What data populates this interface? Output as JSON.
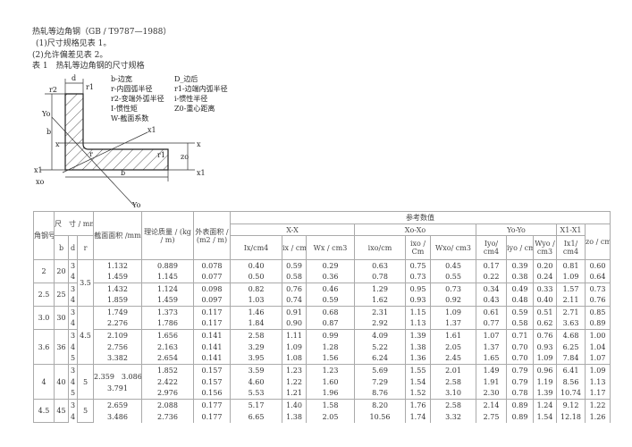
{
  "doc": {
    "heading": "热轧等边角钢（GB / T9787—1988）",
    "item1": "(1)尺寸规格见表 1。",
    "item2": "(2)允许偏差见表 2。",
    "table_title": "表 1　热轧等边角钢的尺寸规格"
  },
  "diagram": {
    "labels": {
      "d": "d",
      "r1": "r1",
      "r2": "r2",
      "b_v": "b",
      "b_h": "b",
      "y0_top": "Yo",
      "y0_bot": "Yo",
      "x1_axis": "x1",
      "x_left": "x",
      "x_right": "x",
      "x1_left": "x1",
      "x1_right": "x1",
      "x0": "xo",
      "z0": "zo",
      "r": "r",
      "r1_b": "r1"
    },
    "legend": [
      "b-边宽",
      "D_边后",
      "r-内圆弧半径",
      "r1-边端内弧半径",
      "r2-变端外弧半径",
      "i-惯性半径",
      "I-惯性矩",
      "Z0-重心距离",
      "W-截面系数"
    ]
  },
  "table": {
    "headers": {
      "angle_no": "角钢号数",
      "size": "尺　寸 / mm",
      "b": "b",
      "d": "d",
      "r": "r",
      "area": "截面面积 /mm",
      "mass": "理论质量 / (kg / m)",
      "surface": "外表面积 / (m2 / m)",
      "ref": "参考数值",
      "xx": "X-X",
      "x0x0": "Xo-Xo",
      "y0y0": "Yo-Yo",
      "x1x1": "X1-X1",
      "z0": "zo / cm",
      "cols": [
        "Ix/cm4",
        "ix / cm",
        "Wx / cm3",
        "ixo/cm",
        "ixo / Cm",
        "Wxo/ cm3",
        "Iyo/ cm4",
        "iyo / cm",
        "Wyo / cm3",
        "Ix1/ cm4"
      ]
    },
    "groups": [
      {
        "angle_no": "2",
        "b": "20",
        "r": "3.5",
        "r_rowspan": 4,
        "rows": [
          [
            "3",
            "1.132",
            "0.889",
            "0.078",
            "0.40",
            "0.59",
            "0.29",
            "0.63",
            "0.75",
            "0.45",
            "0.17",
            "0.39",
            "0.20",
            "0.81",
            "0.60"
          ],
          [
            "4",
            "1.459",
            "1.145",
            "0.077",
            "0.50",
            "0.58",
            "0.36",
            "0.78",
            "0.73",
            "0.55",
            "0.22",
            "0.38",
            "0.24",
            "1.09",
            "0.64"
          ]
        ]
      },
      {
        "angle_no": "2.5",
        "b": "25",
        "rows": [
          [
            "3",
            "1.432",
            "1.124",
            "0.098",
            "0.82",
            "0.76",
            "0.46",
            "1.29",
            "0.95",
            "0.73",
            "0.34",
            "0.49",
            "0.33",
            "1.57",
            "0.73"
          ],
          [
            "4",
            "1.859",
            "1.459",
            "0.097",
            "1.03",
            "0.74",
            "0.59",
            "1.62",
            "0.93",
            "0.92",
            "0.43",
            "0.48",
            "0.40",
            "2.11",
            "0.76"
          ]
        ]
      },
      {
        "angle_no": "3.0",
        "b": "30",
        "r": "4.5",
        "r_rowspan": 5,
        "rows": [
          [
            "3",
            "1.749",
            "1.373",
            "0.117",
            "1.46",
            "0.91",
            "0.68",
            "2.31",
            "1.15",
            "1.09",
            "0.61",
            "0.59",
            "0.51",
            "2.71",
            "0.85"
          ],
          [
            "4",
            "2.276",
            "1.786",
            "0.117",
            "1.84",
            "0.90",
            "0.87",
            "2.92",
            "1.13",
            "1.37",
            "0.77",
            "0.58",
            "0.62",
            "3.63",
            "0.89"
          ]
        ]
      },
      {
        "angle_no": "3.6",
        "b": "36",
        "rows": [
          [
            "3",
            "2.109",
            "1.656",
            "0.141",
            "2.58",
            "1.11",
            "0.99",
            "4.09",
            "1.39",
            "1.61",
            "1.07",
            "0.71",
            "0.76",
            "4.68",
            "1.00"
          ],
          [
            "4",
            "2.756",
            "2.163",
            "0.141",
            "3.29",
            "1.09",
            "1.28",
            "5.22",
            "1.38",
            "2.05",
            "1.37",
            "0.70",
            "0.93",
            "6.25",
            "1.04"
          ],
          [
            "5",
            "3.382",
            "2.654",
            "0.141",
            "3.95",
            "1.08",
            "1.56",
            "6.24",
            "1.36",
            "2.45",
            "1.65",
            "0.70",
            "1.09",
            "7.84",
            "1.07"
          ]
        ]
      },
      {
        "angle_no": "4",
        "b": "40",
        "r": "5",
        "r_rowspan": 3,
        "area_merged": [
          "2.359　3.086",
          "3.791"
        ],
        "rows": [
          [
            "3",
            null,
            "1.852",
            "0.157",
            "3.59",
            "1.23",
            "1.23",
            "5.69",
            "1.55",
            "2.01",
            "1.49",
            "0.79",
            "0.96",
            "6.41",
            "1.09"
          ],
          [
            "4",
            null,
            "2.422",
            "0.157",
            "4.60",
            "1.22",
            "1.60",
            "7.29",
            "1.54",
            "2.58",
            "1.91",
            "0.79",
            "1.19",
            "8.56",
            "1.13"
          ],
          [
            "5",
            null,
            "2.976",
            "0.156",
            "5.53",
            "1.21",
            "1.96",
            "8.76",
            "1.52",
            "3.10",
            "2.30",
            "0.78",
            "1.39",
            "10.74",
            "1.17"
          ]
        ]
      },
      {
        "angle_no": "4.5",
        "b": "45",
        "r": "5",
        "r_rowspan": 2,
        "rows": [
          [
            "3",
            "2.659",
            "2.088",
            "0.177",
            "5.17",
            "1.40",
            "1.58",
            "8.20",
            "1.76",
            "2.58",
            "2.14",
            "0.89",
            "1.24",
            "9.12",
            "1.22"
          ],
          [
            "4",
            "3.486",
            "2.736",
            "0.177",
            "6.65",
            "1.38",
            "2.05",
            "10.56",
            "1.74",
            "3.32",
            "2.75",
            "0.89",
            "1.54",
            "12.18",
            "1.26"
          ]
        ]
      }
    ]
  }
}
